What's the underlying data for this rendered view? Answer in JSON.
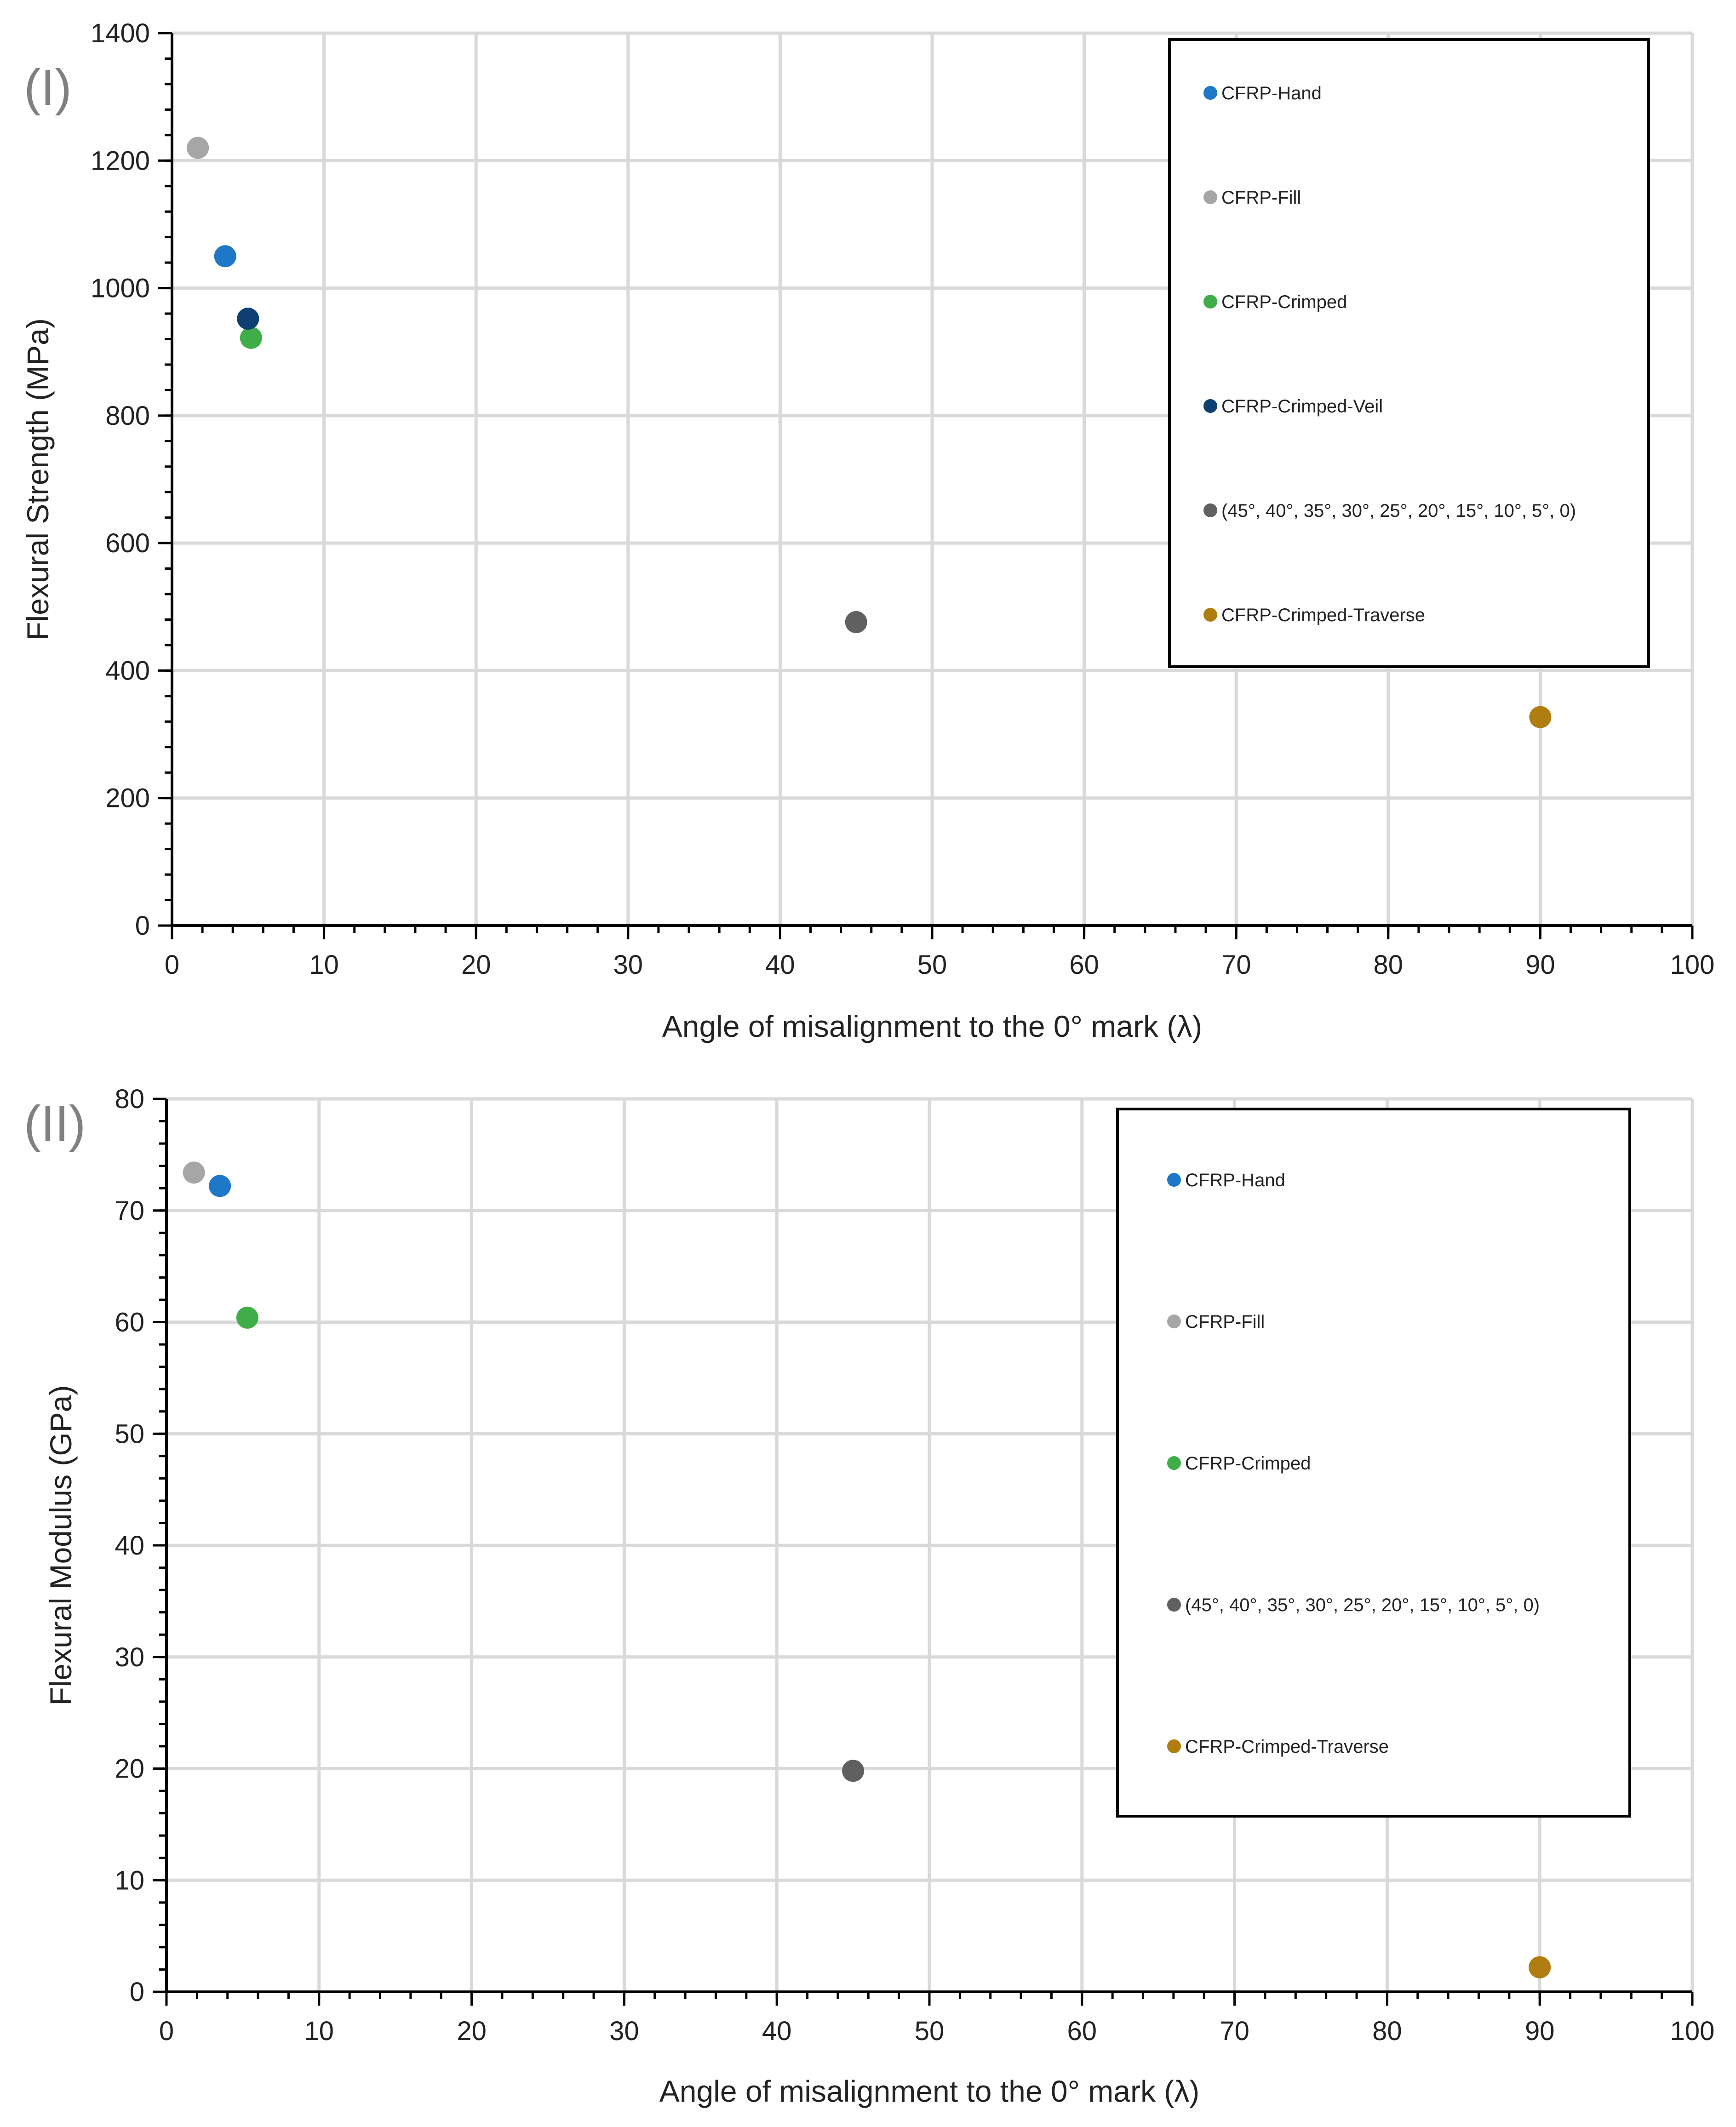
{
  "chart_data": [
    {
      "type": "scatter",
      "panel_label": "(I)",
      "xlabel": "Angle of misalignment to the 0° mark (λ)",
      "ylabel": "Flexural Strength (MPa)",
      "xlim": [
        0,
        100
      ],
      "ylim": [
        0,
        1400
      ],
      "x_ticks": [
        0,
        10,
        20,
        30,
        40,
        50,
        60,
        70,
        80,
        90,
        100
      ],
      "y_ticks": [
        0,
        200,
        400,
        600,
        800,
        1000,
        1200,
        1400
      ],
      "x_minor_step": 2,
      "y_minor_step": 40,
      "grid": true,
      "legend_position": "top-right",
      "series": [
        {
          "name": "CFRP-Hand",
          "color": "#1f77c8",
          "points": [
            [
              3.5,
              1050
            ]
          ]
        },
        {
          "name": "CFRP-Fill",
          "color": "#a6a6a6",
          "points": [
            [
              1.7,
              1220
            ]
          ]
        },
        {
          "name": "CFRP-Crimped",
          "color": "#3fae49",
          "points": [
            [
              5.2,
              922
            ]
          ]
        },
        {
          "name": "CFRP-Crimped-Veil",
          "color": "#0d3f73",
          "points": [
            [
              5.0,
              952
            ]
          ]
        },
        {
          "name": "(45°, 40°, 35°, 30°, 25°, 20°, 15°, 10°, 5°, 0)",
          "color": "#606060",
          "points": [
            [
              45,
              476
            ]
          ]
        },
        {
          "name": "CFRP-Crimped-Traverse",
          "color": "#b07d10",
          "points": [
            [
              90,
              327
            ]
          ]
        }
      ]
    },
    {
      "type": "scatter",
      "panel_label": "(II)",
      "xlabel": "Angle of misalignment to the 0° mark (λ)",
      "ylabel": "Flexural Modulus (GPa)",
      "xlim": [
        0,
        100
      ],
      "ylim": [
        0,
        80
      ],
      "x_ticks": [
        0,
        10,
        20,
        30,
        40,
        50,
        60,
        70,
        80,
        90,
        100
      ],
      "y_ticks": [
        0,
        10,
        20,
        30,
        40,
        50,
        60,
        70,
        80
      ],
      "x_minor_step": 2,
      "y_minor_step": 2,
      "grid": true,
      "legend_position": "top-right",
      "series": [
        {
          "name": "CFRP-Hand",
          "color": "#1f77c8",
          "points": [
            [
              3.5,
              72.2
            ]
          ]
        },
        {
          "name": "CFRP-Fill",
          "color": "#a6a6a6",
          "points": [
            [
              1.8,
              73.4
            ]
          ]
        },
        {
          "name": "CFRP-Crimped",
          "color": "#3fae49",
          "points": [
            [
              5.3,
              60.4
            ]
          ]
        },
        {
          "name": "(45°, 40°, 35°, 30°, 25°, 20°, 15°, 10°, 5°, 0)",
          "color": "#606060",
          "points": [
            [
              45,
              19.8
            ]
          ]
        },
        {
          "name": "CFRP-Crimped-Traverse",
          "color": "#b07d10",
          "points": [
            [
              90,
              2.2
            ]
          ]
        }
      ]
    }
  ]
}
